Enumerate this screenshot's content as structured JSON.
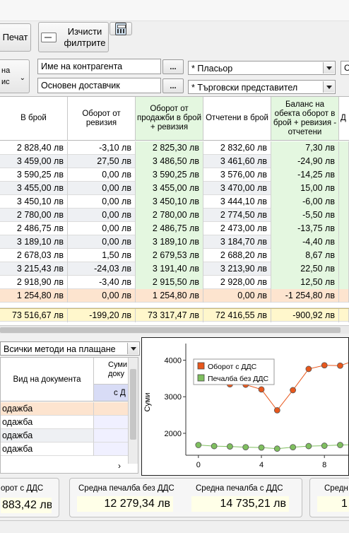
{
  "toolbar": {
    "print_label": "Печат",
    "clear_label_1": "Изчисти",
    "clear_label_2": "филтрите"
  },
  "filters": {
    "left_button_1": "на",
    "left_button_2": "ис",
    "contractor_name": "Име на контрагента",
    "main_supplier": "Основен доставчик",
    "placer": "* Пласьор",
    "sales_rep": "* Търговски представител",
    "dots": "...",
    "edge_cell": "С"
  },
  "grid": {
    "columns": [
      "В брой",
      "Оборот от ревизия",
      "Оборот от продажби в брой + ревизия",
      "Отчетени в брой",
      "Баланс на обекта оборот в брой + ревизия - отчетени",
      "Д"
    ],
    "rows": [
      [
        "2 828,40 лв",
        "-3,10 лв",
        "2 825,30 лв",
        "2 832,60 лв",
        "7,30 лв"
      ],
      [
        "3 459,00 лв",
        "27,50 лв",
        "3 486,50 лв",
        "3 461,60 лв",
        "-24,90 лв"
      ],
      [
        "3 590,25 лв",
        "0,00 лв",
        "3 590,25 лв",
        "3 576,00 лв",
        "-14,25 лв"
      ],
      [
        "3 455,00 лв",
        "0,00 лв",
        "3 455,00 лв",
        "3 470,00 лв",
        "15,00 лв"
      ],
      [
        "3 450,10 лв",
        "0,00 лв",
        "3 450,10 лв",
        "3 444,10 лв",
        "-6,00 лв"
      ],
      [
        "2 780,00 лв",
        "0,00 лв",
        "2 780,00 лв",
        "2 774,50 лв",
        "-5,50 лв"
      ],
      [
        "2 486,75 лв",
        "0,00 лв",
        "2 486,75 лв",
        "2 473,00 лв",
        "-13,75 лв"
      ],
      [
        "3 189,10 лв",
        "0,00 лв",
        "3 189,10 лв",
        "3 184,70 лв",
        "-4,40 лв"
      ],
      [
        "2 678,03 лв",
        "1,50 лв",
        "2 679,53 лв",
        "2 688,20 лв",
        "8,67 лв"
      ],
      [
        "3 215,43 лв",
        "-24,03 лв",
        "3 191,40 лв",
        "3 213,90 лв",
        "22,50 лв"
      ],
      [
        "2 918,90 лв",
        "-3,40 лв",
        "2 915,50 лв",
        "2 928,00 лв",
        "12,50 лв"
      ],
      [
        "1 254,80 лв",
        "0,00 лв",
        "1 254,80 лв",
        "0,00 лв",
        "-1 254,80 лв"
      ]
    ],
    "totals": [
      "73 516,67 лв",
      "-199,20 лв",
      "73 317,47 лв",
      "72 416,55 лв",
      "-900,92 лв"
    ]
  },
  "payment": {
    "method": "Всички методи на плащане"
  },
  "doc_grid": {
    "col_doc_type": "Вид на документа",
    "col_sum_1": "Суми",
    "col_sum_2": "доку",
    "col_sub": "с Д",
    "rows": [
      "одажба",
      "одажба",
      "одажба",
      "одажба"
    ]
  },
  "chart_data": {
    "type": "line",
    "ylabel": "Суми",
    "x_ticks": [
      "0",
      "4",
      "8"
    ],
    "y_ticks": [
      "2000",
      "3000",
      "4000"
    ],
    "ylim": [
      1400,
      4300
    ],
    "xlim": [
      -0.8,
      11.4
    ],
    "x": [
      0,
      1,
      2,
      3,
      4,
      5,
      6,
      7,
      8,
      9,
      10,
      11
    ],
    "series": [
      {
        "name": "Оборот с ДДС",
        "color": "#e8571c",
        "values": [
          3560,
          3420,
          3340,
          3330,
          3200,
          2630,
          3180,
          3760,
          3860,
          3850,
          4000,
          3830
        ]
      },
      {
        "name": "Печалба без ДДС",
        "color": "#7fbf5f",
        "values": [
          1680,
          1650,
          1640,
          1620,
          1610,
          1580,
          1620,
          1650,
          1660,
          1680,
          1690,
          1670
        ]
      }
    ]
  },
  "summary": {
    "turnover_label": "орот с ДДС",
    "turnover_value": "883,42 лв",
    "avg_profit_no_vat_label": "Средна печалба без ДДС",
    "avg_profit_no_vat_value": "12 279,34 лв",
    "avg_profit_vat_label": "Средна печалба с ДДС",
    "avg_profit_vat_value": "14 735,21 лв",
    "edge_label": "Средн",
    "edge_value": "1"
  },
  "colors": {
    "highlight_col": "#e4f7e0",
    "alt_row": "#eef0f3",
    "orange_row": "#fde4cf",
    "totals_row": "#fff7cc",
    "doc_row_highlight": "#fde4cf",
    "doc_sub_header": "#d8dcf6"
  }
}
